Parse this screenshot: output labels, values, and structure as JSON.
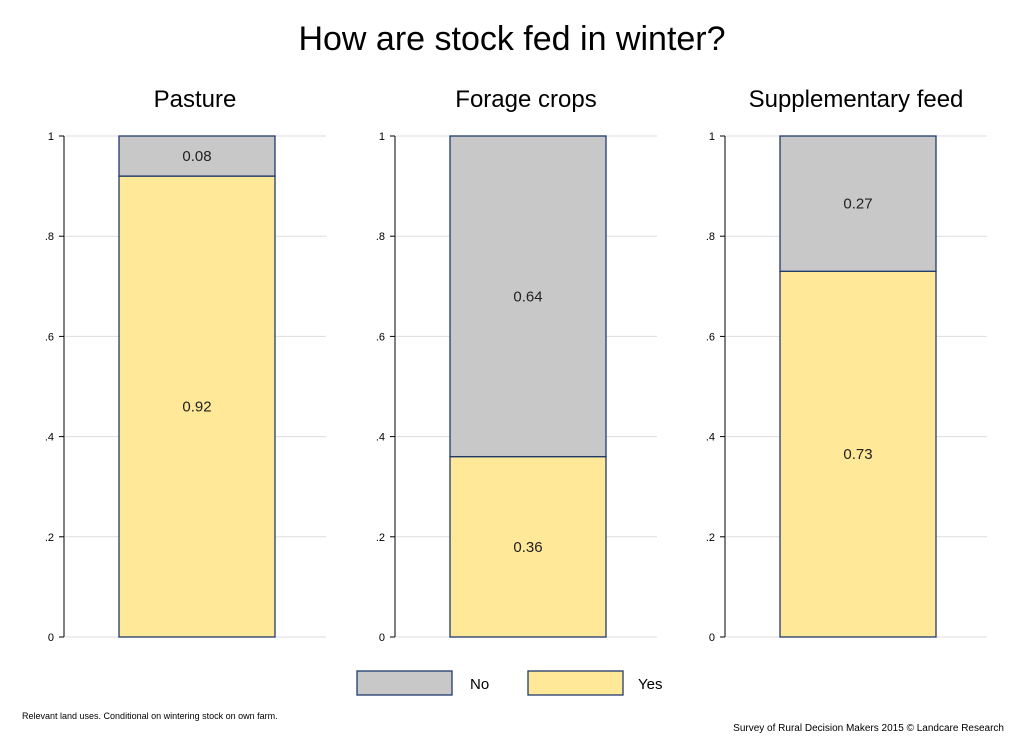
{
  "footnote": "Relevant land uses. Conditional on wintering stock on own farm.",
  "source": "Survey of Rural Decision Makers 2015 © Landcare Research",
  "colors": {
    "no": "#c8c8c8",
    "yes": "#ffe897",
    "bar_outline": "#1f3a6b",
    "grid": "#dddddd"
  },
  "chart_data": {
    "type": "bar",
    "stacked": true,
    "title": "How are stock fed in winter?",
    "ylim": [
      0,
      1
    ],
    "yticks": [
      0,
      0.2,
      0.4,
      0.6,
      0.8,
      1
    ],
    "ytick_labels": [
      "0",
      ".2",
      ".4",
      ".6",
      ".8",
      "1"
    ],
    "grid": true,
    "legend": {
      "placement": "bottom",
      "entries": [
        "No",
        "Yes"
      ]
    },
    "panels": [
      {
        "title": "Pasture",
        "series": [
          {
            "name": "Yes",
            "value": 0.92
          },
          {
            "name": "No",
            "value": 0.08
          }
        ]
      },
      {
        "title": "Forage crops",
        "series": [
          {
            "name": "Yes",
            "value": 0.36
          },
          {
            "name": "No",
            "value": 0.64
          }
        ]
      },
      {
        "title": "Supplementary feed",
        "series": [
          {
            "name": "Yes",
            "value": 0.73
          },
          {
            "name": "No",
            "value": 0.27
          }
        ]
      }
    ]
  }
}
